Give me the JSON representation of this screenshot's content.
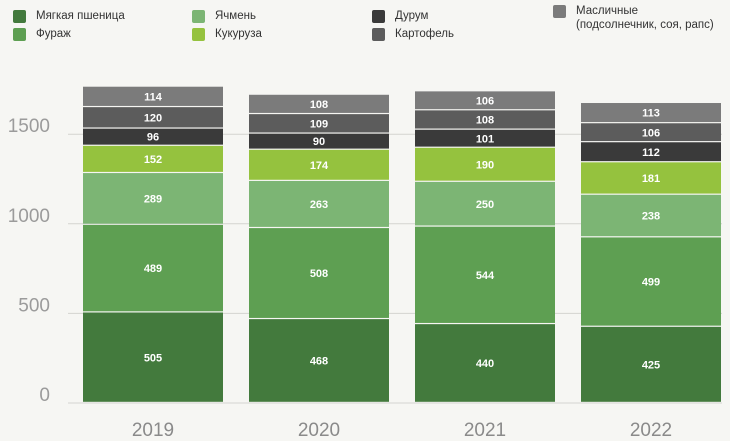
{
  "chart_data": {
    "type": "bar",
    "stacked": true,
    "categories": [
      "2019",
      "2020",
      "2021",
      "2022"
    ],
    "series": [
      {
        "name": "Мягкая пшеница",
        "color": "#437a3d",
        "values": [
          505,
          468,
          440,
          425
        ]
      },
      {
        "name": "Фураж",
        "color": "#5e9f52",
        "values": [
          489,
          508,
          544,
          499
        ]
      },
      {
        "name": "Ячмень",
        "color": "#7cb574",
        "values": [
          289,
          263,
          250,
          238
        ]
      },
      {
        "name": "Кукуруза",
        "color": "#95c23e",
        "values": [
          152,
          174,
          190,
          181
        ]
      },
      {
        "name": "Дурум",
        "color": "#3a3a3a",
        "values": [
          96,
          90,
          101,
          112
        ]
      },
      {
        "name": "Картофель",
        "color": "#5c5c5c",
        "values": [
          120,
          109,
          108,
          106
        ]
      },
      {
        "name": "Масличные\n(подсолнечник, соя, рапс)",
        "color": "#7b7b7b",
        "values": [
          114,
          108,
          106,
          113
        ]
      }
    ],
    "yticks": [
      0,
      500,
      1000,
      1500
    ],
    "ylim": [
      0,
      1800
    ],
    "legend_position": "top",
    "grid": false
  }
}
